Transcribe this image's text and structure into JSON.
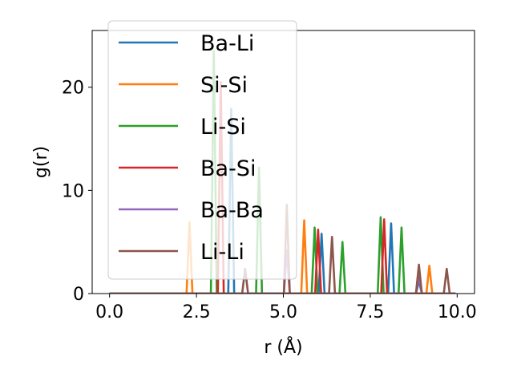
{
  "chart_data": {
    "type": "line",
    "xlabel": "r (Å)",
    "ylabel": "g(r)",
    "xlim": [
      -0.5,
      10.5
    ],
    "ylim": [
      0,
      25.5
    ],
    "xticks": [
      0.0,
      2.5,
      5.0,
      7.5,
      10.0
    ],
    "xtick_labels": [
      "0.0",
      "2.5",
      "5.0",
      "7.5",
      "10.0"
    ],
    "yticks": [
      0,
      10,
      20
    ],
    "ytick_labels": [
      "0",
      "10",
      "20"
    ],
    "grid": false,
    "legend_position": "upper-left",
    "series": [
      {
        "name": "Ba-Li",
        "color": "#1f77b4",
        "peaks": [
          [
            3.5,
            17.9
          ],
          [
            6.1,
            5.8
          ],
          [
            8.1,
            6.8
          ],
          [
            8.9,
            1.2
          ]
        ]
      },
      {
        "name": "Si-Si",
        "color": "#ff7f0e",
        "peaks": [
          [
            2.3,
            6.9
          ],
          [
            5.6,
            7.1
          ],
          [
            9.2,
            2.7
          ]
        ]
      },
      {
        "name": "Li-Si",
        "color": "#2ca02c",
        "peaks": [
          [
            3.0,
            23.5
          ],
          [
            4.3,
            12.2
          ],
          [
            5.9,
            6.4
          ],
          [
            6.7,
            5.0
          ],
          [
            7.8,
            7.4
          ],
          [
            8.4,
            6.4
          ]
        ]
      },
      {
        "name": "Ba-Si",
        "color": "#d62728",
        "peaks": [
          [
            3.2,
            20.5
          ],
          [
            6.0,
            6.2
          ],
          [
            7.9,
            7.2
          ]
        ]
      },
      {
        "name": "Ba-Ba",
        "color": "#9467bd",
        "peaks": [
          [
            5.1,
            4.2
          ],
          [
            8.9,
            1.6
          ]
        ]
      },
      {
        "name": "Li-Li",
        "color": "#8c564b",
        "peaks": [
          [
            3.9,
            2.4
          ],
          [
            5.1,
            8.6
          ],
          [
            6.4,
            5.5
          ],
          [
            8.9,
            2.8
          ],
          [
            9.7,
            2.4
          ]
        ]
      }
    ]
  }
}
